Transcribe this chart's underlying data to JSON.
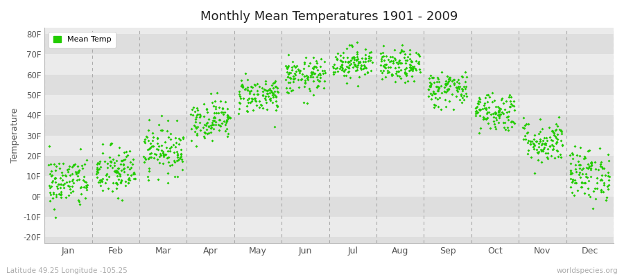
{
  "title": "Monthly Mean Temperatures 1901 - 2009",
  "ylabel": "Temperature",
  "latitude_label": "Latitude 49.25 Longitude -105.25",
  "watermark": "worldspecies.org",
  "legend_label": "Mean Temp",
  "dot_color": "#22cc00",
  "background_color": "#ffffff",
  "plot_bg_light": "#ebebeb",
  "plot_bg_dark": "#dedede",
  "dashed_line_color": "#aaaaaa",
  "ytick_labels": [
    "-20F",
    "-10F",
    "0F",
    "10F",
    "20F",
    "30F",
    "40F",
    "50F",
    "60F",
    "70F",
    "80F"
  ],
  "ytick_values": [
    -20,
    -10,
    0,
    10,
    20,
    30,
    40,
    50,
    60,
    70,
    80
  ],
  "ylim": [
    -23,
    83
  ],
  "months": [
    "Jan",
    "Feb",
    "Mar",
    "Apr",
    "May",
    "Jun",
    "Jul",
    "Aug",
    "Sep",
    "Oct",
    "Nov",
    "Dec"
  ],
  "month_centers": [
    1,
    2,
    3,
    4,
    5,
    6,
    7,
    8,
    9,
    10,
    11,
    12
  ],
  "num_years": 109,
  "seed": 42,
  "monthly_mean_temps_F": {
    "Jan": 7.0,
    "Feb": 12.0,
    "Mar": 23.0,
    "Apr": 38.0,
    "May": 50.0,
    "Jun": 59.0,
    "Jul": 66.0,
    "Aug": 64.0,
    "Sep": 53.0,
    "Oct": 42.0,
    "Nov": 27.0,
    "Dec": 11.0
  },
  "monthly_std_temps_F": {
    "Jan": 6.5,
    "Feb": 6.5,
    "Mar": 6.0,
    "Apr": 5.0,
    "May": 4.5,
    "Jun": 4.5,
    "Jul": 4.0,
    "Aug": 4.0,
    "Sep": 4.5,
    "Oct": 5.0,
    "Nov": 5.5,
    "Dec": 6.5
  }
}
